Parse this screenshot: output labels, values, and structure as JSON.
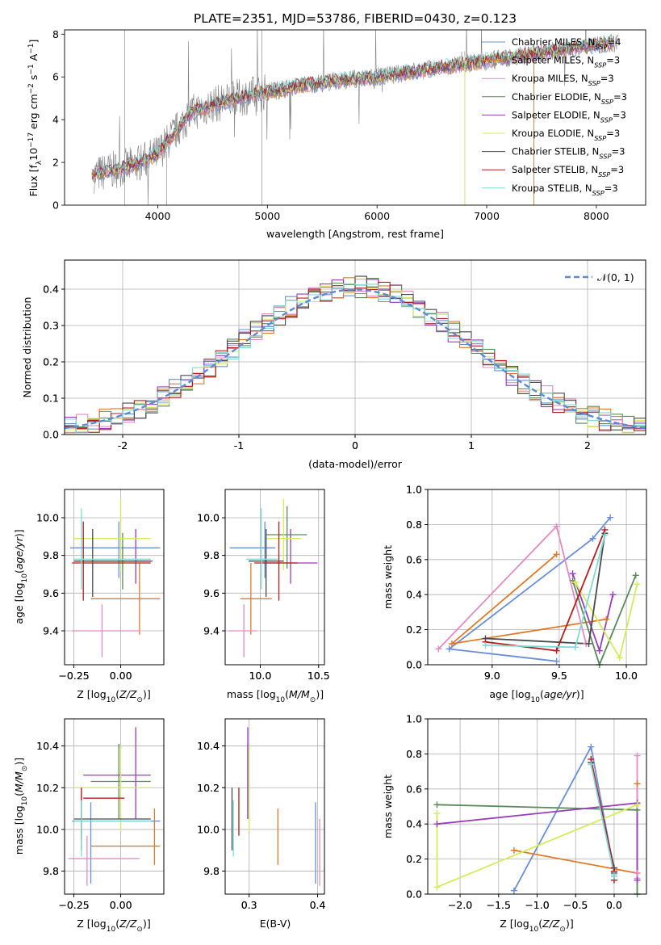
{
  "title": "PLATE=2351, MJD=53786, FIBERID=0430, z=0.123",
  "colors": {
    "chabrier_miles": "#6a8fd8",
    "salpeter_miles": "#e07a2a",
    "kroupa_miles": "#e58ac3",
    "chabrier_elodie": "#5a8a5a",
    "salpeter_elodie": "#9a3dbb",
    "kroupa_elodie": "#d4ec5a",
    "chabrier_stelib": "#4a4a4a",
    "salpeter_stelib": "#b81c1c",
    "kroupa_stelib": "#7fdad8",
    "observed": "#808080"
  },
  "legend": [
    {
      "key": "chabrier_miles",
      "label": "Chabrier MILES, N",
      "sub": "SSP",
      "suffix": "=4"
    },
    {
      "key": "salpeter_miles",
      "label": "Salpeter MILES, N",
      "sub": "SSP",
      "suffix": "=3"
    },
    {
      "key": "kroupa_miles",
      "label": "Kroupa MILES, N",
      "sub": "SSP",
      "suffix": "=3"
    },
    {
      "key": "chabrier_elodie",
      "label": "Chabrier ELODIE, N",
      "sub": "SSP",
      "suffix": "=3"
    },
    {
      "key": "salpeter_elodie",
      "label": "Salpeter ELODIE, N",
      "sub": "SSP",
      "suffix": "=3"
    },
    {
      "key": "kroupa_elodie",
      "label": "Kroupa ELODIE, N",
      "sub": "SSP",
      "suffix": "=3"
    },
    {
      "key": "chabrier_stelib",
      "label": "Chabrier STELIB, N",
      "sub": "SSP",
      "suffix": "=3"
    },
    {
      "key": "salpeter_stelib",
      "label": "Salpeter STELIB, N",
      "sub": "SSP",
      "suffix": "=3"
    },
    {
      "key": "kroupa_stelib",
      "label": "Kroupa STELIB, N",
      "sub": "SSP",
      "suffix": "=3"
    }
  ],
  "chart_data": [
    {
      "id": "spectrum",
      "type": "line",
      "xlabel": "wavelength [Angstrom, rest frame]",
      "ylabel": "Flux [fλ10⁻¹⁷ erg cm⁻² s⁻¹ A⁻¹]",
      "xlim": [
        3150,
        8450
      ],
      "ylim": [
        0,
        8.2
      ],
      "xticks": [
        4000,
        5000,
        6000,
        7000,
        8000
      ],
      "yticks": [
        0,
        2,
        4,
        6,
        8
      ],
      "continuum_x": [
        3400,
        3800,
        4000,
        4300,
        4500,
        4800,
        5000,
        5300,
        5600,
        6000,
        6400,
        6800,
        7200,
        7600,
        8000,
        8200
      ],
      "continuum_y": [
        1.4,
        1.9,
        2.4,
        4.3,
        4.7,
        5.1,
        5.3,
        5.6,
        5.8,
        6.0,
        6.3,
        6.6,
        6.9,
        7.2,
        7.5,
        7.6
      ]
    },
    {
      "id": "residuals",
      "type": "histogram",
      "xlabel": "(data-model)/error",
      "ylabel": "Normed distribution",
      "xlim": [
        -2.5,
        2.5
      ],
      "ylim": [
        0,
        0.48
      ],
      "xticks": [
        -2,
        -1,
        0,
        1,
        2
      ],
      "yticks": [
        0.0,
        0.1,
        0.2,
        0.3,
        0.4
      ],
      "bin_width": 0.1,
      "reference_label": "𝒩(0, 1)",
      "reference_color": "#5b8bd6"
    },
    {
      "id": "age_vs_Z",
      "type": "errorbar",
      "xlabel": "Z [log₁₀(Z/Z⊙)]",
      "ylabel": "age  [log₁₀(age/yr)]",
      "xlim": [
        -0.3,
        0.23
      ],
      "ylim": [
        9.22,
        10.15
      ],
      "xticks": [
        -0.25,
        0.0
      ],
      "xtick_labels": [
        "−0.25",
        "0.00"
      ],
      "yticks": [
        9.4,
        9.6,
        9.8,
        10.0
      ],
      "points": [
        {
          "s": "chabrier_miles",
          "x": -0.01,
          "y": 9.84,
          "xlo": -0.27,
          "xhi": 0.21,
          "ylo": 9.68,
          "yhi": 9.98
        },
        {
          "s": "salpeter_miles",
          "x": 0.1,
          "y": 9.57,
          "xlo": -0.16,
          "xhi": 0.21,
          "ylo": 9.38,
          "yhi": 9.76
        },
        {
          "s": "kroupa_miles",
          "x": -0.1,
          "y": 9.4,
          "xlo": -0.26,
          "xhi": 0.1,
          "ylo": 9.26,
          "yhi": 9.54
        },
        {
          "s": "chabrier_elodie",
          "x": 0.01,
          "y": 9.77,
          "xlo": -0.25,
          "xhi": 0.17,
          "ylo": 9.62,
          "yhi": 9.92
        },
        {
          "s": "salpeter_elodie",
          "x": 0.08,
          "y": 9.77,
          "xlo": -0.2,
          "xhi": 0.17,
          "ylo": 9.65,
          "yhi": 9.94
        },
        {
          "s": "kroupa_elodie",
          "x": 0.0,
          "y": 9.89,
          "xlo": -0.25,
          "xhi": 0.16,
          "ylo": 9.72,
          "yhi": 10.1
        },
        {
          "s": "chabrier_stelib",
          "x": -0.15,
          "y": 9.77,
          "xlo": -0.25,
          "xhi": 0.16,
          "ylo": 9.58,
          "yhi": 9.94
        },
        {
          "s": "salpeter_stelib",
          "x": -0.2,
          "y": 9.76,
          "xlo": -0.26,
          "xhi": 0.16,
          "ylo": 9.56,
          "yhi": 9.98
        },
        {
          "s": "kroupa_stelib",
          "x": -0.21,
          "y": 9.78,
          "xlo": -0.25,
          "xhi": 0.16,
          "ylo": 9.62,
          "yhi": 10.05
        }
      ]
    },
    {
      "id": "age_vs_mass",
      "type": "errorbar",
      "xlabel": "mass [log₁₀(M/M⊙)]",
      "ylabel": "",
      "xlim": [
        9.7,
        10.55
      ],
      "ylim": [
        9.22,
        10.15
      ],
      "xticks": [
        10.0,
        10.5
      ],
      "xtick_labels": [
        "10.0",
        "10.5"
      ],
      "yticks": [
        9.4,
        9.6,
        9.8,
        10.0
      ],
      "points": [
        {
          "s": "chabrier_miles",
          "x": 10.04,
          "y": 9.84,
          "xlo": 9.74,
          "xhi": 10.13,
          "ylo": 9.68,
          "yhi": 9.98
        },
        {
          "s": "salpeter_miles",
          "x": 9.92,
          "y": 9.57,
          "xlo": 9.83,
          "xhi": 10.1,
          "ylo": 9.38,
          "yhi": 9.76
        },
        {
          "s": "kroupa_miles",
          "x": 9.86,
          "y": 9.4,
          "xlo": 9.73,
          "xhi": 9.97,
          "ylo": 9.26,
          "yhi": 9.54
        },
        {
          "s": "chabrier_elodie",
          "x": 10.23,
          "y": 9.91,
          "xlo": 10.05,
          "xhi": 10.4,
          "ylo": 9.73,
          "yhi": 10.06
        },
        {
          "s": "salpeter_elodie",
          "x": 10.26,
          "y": 9.76,
          "xlo": 10.03,
          "xhi": 10.49,
          "ylo": 9.65,
          "yhi": 9.94
        },
        {
          "s": "kroupa_elodie",
          "x": 10.2,
          "y": 9.89,
          "xlo": 10.05,
          "xhi": 10.35,
          "ylo": 9.72,
          "yhi": 10.1
        },
        {
          "s": "chabrier_stelib",
          "x": 10.05,
          "y": 9.77,
          "xlo": 9.9,
          "xhi": 10.2,
          "ylo": 9.58,
          "yhi": 9.94
        },
        {
          "s": "salpeter_stelib",
          "x": 10.16,
          "y": 9.76,
          "xlo": 9.95,
          "xhi": 10.32,
          "ylo": 9.56,
          "yhi": 9.98
        },
        {
          "s": "kroupa_stelib",
          "x": 10.01,
          "y": 9.78,
          "xlo": 9.88,
          "xhi": 10.15,
          "ylo": 9.62,
          "yhi": 10.05
        }
      ]
    },
    {
      "id": "weight_vs_age",
      "type": "line",
      "xlabel": "age  [log₁₀(age/yr)]",
      "ylabel": "mass weight",
      "xlim": [
        8.52,
        10.15
      ],
      "ylim": [
        0,
        1.0
      ],
      "xticks": [
        9.0,
        9.5,
        10.0
      ],
      "xtick_labels": [
        "9.0",
        "9.5",
        "10.0"
      ],
      "yticks": [
        0.0,
        0.2,
        0.4,
        0.6,
        0.8,
        1.0
      ],
      "series": [
        {
          "s": "chabrier_miles",
          "x": [
            9.48,
            8.68,
            9.75,
            9.88
          ],
          "y": [
            0.02,
            0.09,
            0.72,
            0.84
          ]
        },
        {
          "s": "salpeter_miles",
          "x": [
            9.48,
            8.7,
            9.85
          ],
          "y": [
            0.63,
            0.12,
            0.26
          ]
        },
        {
          "s": "kroupa_miles",
          "x": [
            8.6,
            9.48,
            9.7
          ],
          "y": [
            0.09,
            0.79,
            0.12
          ]
        },
        {
          "s": "chabrier_elodie",
          "x": [
            9.6,
            9.8,
            10.07
          ],
          "y": [
            0.48,
            0.0,
            0.51
          ]
        },
        {
          "s": "salpeter_elodie",
          "x": [
            9.6,
            9.8,
            9.9
          ],
          "y": [
            0.52,
            0.08,
            0.4
          ]
        },
        {
          "s": "kroupa_elodie",
          "x": [
            9.62,
            9.95,
            10.08
          ],
          "y": [
            0.47,
            0.04,
            0.46
          ]
        },
        {
          "s": "chabrier_stelib",
          "x": [
            8.95,
            9.72,
            9.84
          ],
          "y": [
            0.15,
            0.12,
            0.75
          ]
        },
        {
          "s": "salpeter_stelib",
          "x": [
            8.95,
            9.48,
            9.84
          ],
          "y": [
            0.13,
            0.08,
            0.77
          ]
        },
        {
          "s": "kroupa_stelib",
          "x": [
            8.95,
            9.62,
            9.84
          ],
          "y": [
            0.11,
            0.1,
            0.74
          ]
        }
      ]
    },
    {
      "id": "mass_vs_Z",
      "type": "errorbar",
      "xlabel": "Z [log₁₀(Z/Z⊙)]",
      "ylabel": "mass [log₁₀(M/M⊙)]",
      "xlim": [
        -0.3,
        0.23
      ],
      "ylim": [
        9.69,
        10.53
      ],
      "xticks": [
        -0.25,
        0.0
      ],
      "xtick_labels": [
        "−0.25",
        "0.00"
      ],
      "yticks": [
        9.8,
        10.0,
        10.2,
        10.4
      ],
      "points": [
        {
          "s": "chabrier_miles",
          "x": -0.16,
          "y": 10.04,
          "xlo": -0.26,
          "xhi": 0.21,
          "ylo": 9.74,
          "yhi": 10.13
        },
        {
          "s": "salpeter_miles",
          "x": 0.18,
          "y": 9.92,
          "xlo": -0.16,
          "xhi": 0.21,
          "ylo": 9.83,
          "yhi": 10.1
        },
        {
          "s": "kroupa_miles",
          "x": -0.18,
          "y": 9.86,
          "xlo": -0.28,
          "xhi": 0.1,
          "ylo": 9.73,
          "yhi": 9.97
        },
        {
          "s": "chabrier_elodie",
          "x": -0.01,
          "y": 10.23,
          "xlo": -0.16,
          "xhi": 0.16,
          "ylo": 10.05,
          "yhi": 10.41
        },
        {
          "s": "salpeter_elodie",
          "x": 0.08,
          "y": 10.26,
          "xlo": -0.2,
          "xhi": 0.16,
          "ylo": 10.05,
          "yhi": 10.49
        },
        {
          "s": "kroupa_elodie",
          "x": 0.0,
          "y": 10.2,
          "xlo": -0.25,
          "xhi": 0.16,
          "ylo": 9.99,
          "yhi": 10.4
        },
        {
          "s": "chabrier_stelib",
          "x": -0.21,
          "y": 10.05,
          "xlo": -0.25,
          "xhi": 0.16,
          "ylo": 9.9,
          "yhi": 10.2
        },
        {
          "s": "salpeter_stelib",
          "x": -0.21,
          "y": 10.15,
          "xlo": -0.2,
          "xhi": 0.02,
          "ylo": 9.95,
          "yhi": 10.2
        },
        {
          "s": "kroupa_stelib",
          "x": -0.21,
          "y": 10.04,
          "xlo": -0.25,
          "xhi": 0.16,
          "ylo": 9.87,
          "yhi": 10.14
        }
      ]
    },
    {
      "id": "mass_vs_ebv",
      "type": "errorbar",
      "xlabel": "E(B-V)",
      "ylabel": "",
      "xlim": [
        0.265,
        0.41
      ],
      "ylim": [
        9.69,
        10.53
      ],
      "xticks": [
        0.3,
        0.4
      ],
      "xtick_labels": [
        "0.3",
        "0.4"
      ],
      "yticks": [
        9.8,
        10.0,
        10.2,
        10.4
      ],
      "points": [
        {
          "s": "chabrier_miles",
          "x": 0.397,
          "y": 9.94,
          "ylo": 9.74,
          "yhi": 10.13
        },
        {
          "s": "salpeter_miles",
          "x": 0.342,
          "y": 9.96,
          "ylo": 9.83,
          "yhi": 10.1
        },
        {
          "s": "kroupa_miles",
          "x": 0.403,
          "y": 9.86,
          "ylo": 9.73,
          "yhi": 10.05
        },
        {
          "s": "chabrier_elodie",
          "x": 0.298,
          "y": 10.23,
          "ylo": 10.05,
          "yhi": 10.41
        },
        {
          "s": "salpeter_elodie",
          "x": 0.298,
          "y": 10.28,
          "ylo": 10.05,
          "yhi": 10.49
        },
        {
          "s": "kroupa_elodie",
          "x": 0.3,
          "y": 10.2,
          "ylo": 9.99,
          "yhi": 10.4
        },
        {
          "s": "chabrier_stelib",
          "x": 0.275,
          "y": 10.05,
          "ylo": 9.9,
          "yhi": 10.2
        },
        {
          "s": "salpeter_stelib",
          "x": 0.285,
          "y": 10.1,
          "ylo": 9.97,
          "yhi": 10.2
        },
        {
          "s": "kroupa_stelib",
          "x": 0.277,
          "y": 10.04,
          "ylo": 9.87,
          "yhi": 10.14
        }
      ]
    },
    {
      "id": "weight_vs_Z",
      "type": "line",
      "xlabel": "Z [log₁₀(Z/Z⊙)]",
      "ylabel": "mass weight",
      "xlim": [
        -2.42,
        0.42
      ],
      "ylim": [
        0,
        1.0
      ],
      "xticks": [
        -2.0,
        -1.5,
        -1.0,
        -0.5,
        0.0
      ],
      "xtick_labels": [
        "−2.0",
        "−1.5",
        "−1.0",
        "−0.5",
        "0.0"
      ],
      "yticks": [
        0.0,
        0.2,
        0.4,
        0.6,
        0.8,
        1.0
      ],
      "series": [
        {
          "s": "chabrier_miles",
          "x": [
            -1.3,
            -0.3,
            0.0,
            0.0
          ],
          "y": [
            0.02,
            0.84,
            0.13,
            0.08
          ]
        },
        {
          "s": "salpeter_miles",
          "x": [
            -1.3,
            0.3,
            0.3
          ],
          "y": [
            0.25,
            0.12,
            0.63
          ]
        },
        {
          "s": "kroupa_miles",
          "x": [
            0.3,
            0.3,
            0.3
          ],
          "y": [
            0.09,
            0.79,
            0.12
          ]
        },
        {
          "s": "chabrier_elodie",
          "x": [
            -2.3,
            0.3,
            0.3
          ],
          "y": [
            0.51,
            0.48,
            0.0
          ]
        },
        {
          "s": "salpeter_elodie",
          "x": [
            -2.3,
            0.3,
            0.3
          ],
          "y": [
            0.4,
            0.52,
            0.08
          ]
        },
        {
          "s": "kroupa_elodie",
          "x": [
            -2.3,
            -2.3,
            0.3
          ],
          "y": [
            0.46,
            0.04,
            0.51
          ]
        },
        {
          "s": "chabrier_stelib",
          "x": [
            -0.3,
            0.0,
            0.0
          ],
          "y": [
            0.75,
            0.15,
            0.12
          ]
        },
        {
          "s": "salpeter_stelib",
          "x": [
            -0.3,
            0.0,
            0.0
          ],
          "y": [
            0.77,
            0.13,
            0.08
          ]
        },
        {
          "s": "kroupa_stelib",
          "x": [
            -0.3,
            0.0,
            0.0
          ],
          "y": [
            0.74,
            0.11,
            0.1
          ]
        }
      ]
    }
  ]
}
